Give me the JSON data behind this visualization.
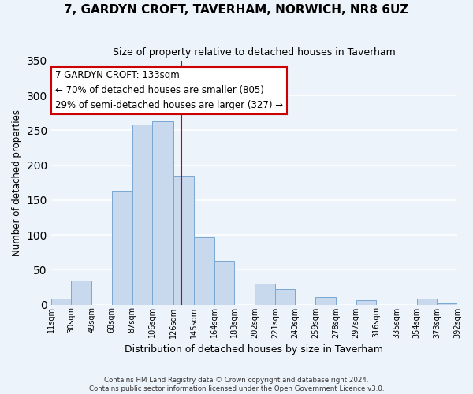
{
  "title": "7, GARDYN CROFT, TAVERHAM, NORWICH, NR8 6UZ",
  "subtitle": "Size of property relative to detached houses in Taverham",
  "xlabel": "Distribution of detached houses by size in Taverham",
  "ylabel": "Number of detached properties",
  "bar_color": "#c8d9ee",
  "bar_edge_color": "#7aa8d2",
  "bin_edges": [
    11,
    30,
    49,
    68,
    87,
    106,
    126,
    145,
    164,
    183,
    202,
    221,
    240,
    259,
    278,
    297,
    316,
    335,
    354,
    373,
    392
  ],
  "bar_heights": [
    9,
    35,
    0,
    162,
    258,
    263,
    185,
    97,
    63,
    0,
    30,
    22,
    0,
    11,
    0,
    6,
    0,
    0,
    9,
    2
  ],
  "tick_labels": [
    "11sqm",
    "30sqm",
    "49sqm",
    "68sqm",
    "87sqm",
    "106sqm",
    "126sqm",
    "145sqm",
    "164sqm",
    "183sqm",
    "202sqm",
    "221sqm",
    "240sqm",
    "259sqm",
    "278sqm",
    "297sqm",
    "316sqm",
    "335sqm",
    "354sqm",
    "373sqm",
    "392sqm"
  ],
  "vline_x": 133,
  "vline_color": "#cc0000",
  "annotation_title": "7 GARDYN CROFT: 133sqm",
  "annotation_line1": "← 70% of detached houses are smaller (805)",
  "annotation_line2": "29% of semi-detached houses are larger (327) →",
  "annotation_box_color": "#ffffff",
  "annotation_box_edge": "#cc0000",
  "ylim": [
    0,
    350
  ],
  "footnote1": "Contains HM Land Registry data © Crown copyright and database right 2024.",
  "footnote2": "Contains public sector information licensed under the Open Government Licence v3.0.",
  "background_color": "#edf3fb",
  "grid_color": "#ffffff"
}
